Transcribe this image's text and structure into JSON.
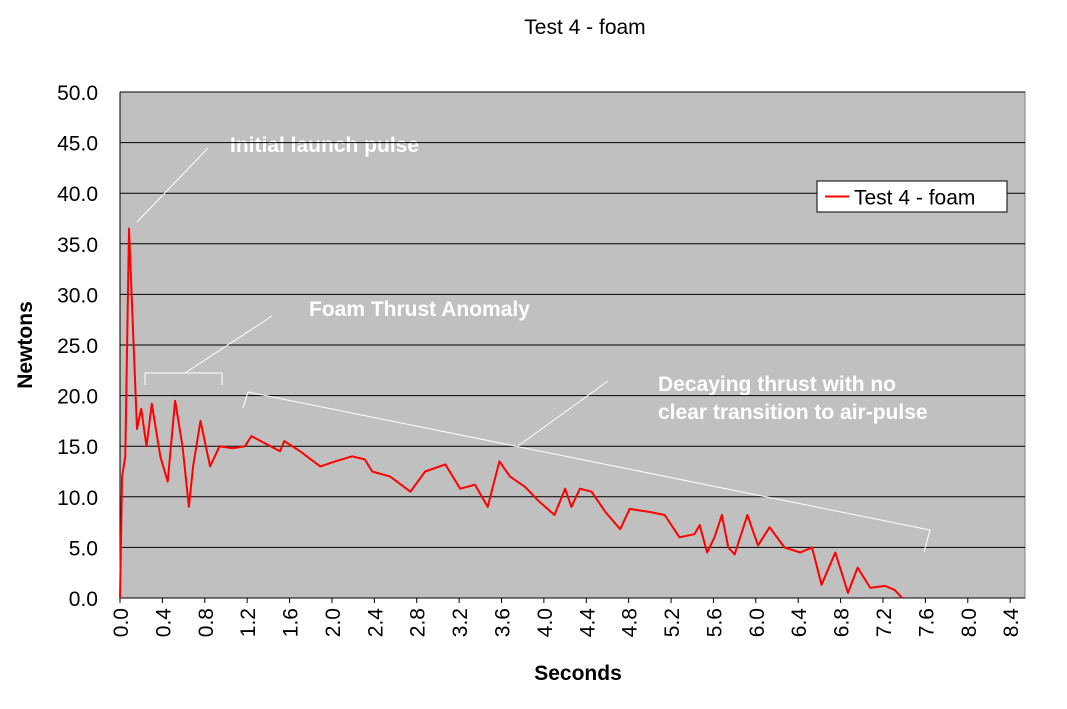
{
  "chart_data": {
    "type": "line",
    "title": "Test 4 - foam",
    "x_label": "Seconds",
    "y_label": "Newtons",
    "annotations": [
      "Initial launch pulse",
      "Foam Thrust Anomaly",
      "Decaying thrust with no",
      "clear transition to air-pulse"
    ],
    "legend": "top-right",
    "grid": true,
    "xlim": [
      0,
      8.54
    ],
    "ylim": [
      0,
      50
    ],
    "xticks": [
      {
        "value": 0,
        "label": "0.0"
      },
      0.4,
      0.8,
      1.2,
      1.6,
      {
        "value": 2,
        "label": "2.0"
      },
      2.4,
      2.8,
      3.2,
      3.6,
      {
        "value": 4,
        "label": "4.0"
      },
      4.4,
      4.8,
      5.2,
      5.6,
      {
        "value": 6,
        "label": "6.0"
      },
      6.4,
      6.8,
      7.2,
      7.6,
      {
        "value": 8,
        "label": "8.0"
      },
      8.4
    ],
    "yticks": [
      {
        "value": 0,
        "label": "0.0"
      },
      {
        "value": 5,
        "label": "5.0"
      },
      {
        "value": 10,
        "label": "10.0"
      },
      {
        "value": 15,
        "label": "15.0"
      },
      {
        "value": 20,
        "label": "20.0"
      },
      {
        "value": 25,
        "label": "25.0"
      },
      {
        "value": 30,
        "label": "30.0"
      },
      {
        "value": 35,
        "label": "35.0"
      },
      {
        "value": 40,
        "label": "40.0"
      },
      {
        "value": 45,
        "label": "45.0"
      },
      {
        "value": 50,
        "label": "50.0"
      }
    ],
    "x": [
      0,
      0.02,
      0.05,
      0.085,
      0.16,
      0.2,
      0.25,
      0.3,
      0.38,
      0.45,
      0.52,
      0.59,
      0.65,
      0.69,
      0.76,
      0.85,
      0.94,
      1.06,
      1.18,
      1.24,
      1.42,
      1.51,
      1.55,
      1.7,
      1.89,
      2.03,
      2.19,
      2.31,
      2.38,
      2.55,
      2.74,
      2.88,
      3.07,
      3.21,
      3.35,
      3.47,
      3.58,
      3.68,
      3.82,
      3.96,
      4.1,
      4.2,
      4.26,
      4.34,
      4.45,
      4.58,
      4.72,
      4.81,
      5.0,
      5.14,
      5.28,
      5.42,
      5.47,
      5.54,
      5.61,
      5.68,
      5.74,
      5.8,
      5.92,
      6.02,
      6.13,
      6.27,
      6.42,
      6.53,
      6.62,
      6.75,
      6.87,
      6.96,
      7.08,
      7.22,
      7.31,
      7.38
    ],
    "series": [
      {
        "name": "Test 4 - foam",
        "color": "#ff0000",
        "values": [
          0,
          12,
          14,
          36.5,
          16.7,
          18.7,
          15,
          19.2,
          14,
          11.5,
          19.5,
          15,
          9,
          13,
          17.5,
          13,
          15,
          14.8,
          15,
          16,
          15,
          14.5,
          15.5,
          14.5,
          13,
          13.5,
          14,
          13.7,
          12.5,
          12,
          10.5,
          12.5,
          13.2,
          10.8,
          11.2,
          9,
          13.5,
          12,
          11,
          9.5,
          8.2,
          10.8,
          9,
          10.8,
          10.5,
          8.5,
          6.8,
          8.8,
          8.5,
          8.2,
          6,
          6.3,
          7.2,
          4.5,
          6,
          8.2,
          5,
          4.3,
          8.2,
          5.2,
          7,
          5,
          4.5,
          5,
          1.3,
          4.5,
          0.5,
          3,
          1,
          1.2,
          0.8,
          0
        ]
      }
    ]
  }
}
